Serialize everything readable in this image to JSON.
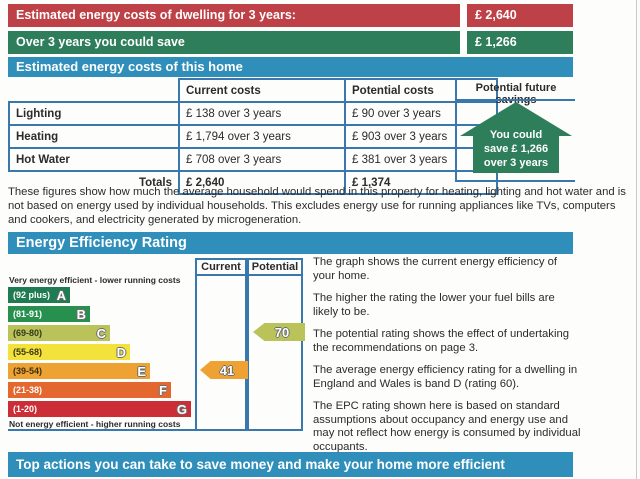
{
  "summary": {
    "cost_row": {
      "label": "Estimated energy costs of dwelling for 3 years:",
      "value": "£ 2,640"
    },
    "save_row": {
      "label": "Over 3 years you could save",
      "value": "£ 1,266"
    }
  },
  "costs": {
    "title": "Estimated energy costs of this home",
    "columns": [
      "Current costs",
      "Potential costs"
    ],
    "savings_header": "Potential future savings",
    "rows": [
      {
        "label": "Lighting",
        "current": "£ 138 over 3 years",
        "potential": "£ 90 over 3 years"
      },
      {
        "label": "Heating",
        "current": "£ 1,794 over 3 years",
        "potential": "£ 903 over 3 years"
      },
      {
        "label": "Hot Water",
        "current": "£ 708 over 3 years",
        "potential": "£ 381 over 3 years"
      }
    ],
    "totals": {
      "label": "Totals",
      "current": "£ 2,640",
      "potential": "£ 1,374"
    },
    "house": {
      "lines": [
        "You could",
        "save £ 1,266",
        "over 3 years"
      ],
      "color": "#2e7d5b"
    }
  },
  "disclaimer": "These figures show how much the average household would spend in this property for heating, lighting and hot water and is not based on energy used by individual households. This excludes energy use for running appliances like TVs, computers and cookers, and electricity generated by microgeneration.",
  "eer": {
    "title": "Energy Efficiency Rating",
    "top_caption": "Very energy efficient - lower running costs",
    "bottom_caption": "Not energy efficient - higher running costs",
    "col_current": "Current",
    "col_potential": "Potential",
    "chart_data": {
      "type": "epc-rating-bands",
      "bands": [
        {
          "letter": "A",
          "range": "(92 plus)",
          "min": 92,
          "max": 100,
          "color": "#1e7b52"
        },
        {
          "letter": "B",
          "range": "(81-91)",
          "min": 81,
          "max": 91,
          "color": "#28904f"
        },
        {
          "letter": "C",
          "range": "(69-80)",
          "min": 69,
          "max": 80,
          "color": "#b9c35a"
        },
        {
          "letter": "D",
          "range": "(55-68)",
          "min": 55,
          "max": 68,
          "color": "#f3e23c"
        },
        {
          "letter": "E",
          "range": "(39-54)",
          "min": 39,
          "max": 54,
          "color": "#eda233"
        },
        {
          "letter": "F",
          "range": "(21-38)",
          "min": 21,
          "max": 38,
          "color": "#e3672f"
        },
        {
          "letter": "G",
          "range": "(1-20)",
          "min": 1,
          "max": 20,
          "color": "#cc2e38"
        }
      ],
      "current": {
        "value": 41,
        "band": "E",
        "color": "#eda233"
      },
      "potential": {
        "value": 70,
        "band": "C",
        "color": "#b9c35a"
      }
    },
    "paragraphs": [
      "The graph shows the current energy efficiency of your home.",
      "The higher the rating the lower your fuel bills are likely to be.",
      "The potential rating shows the effect of undertaking the recommendations on page 3.",
      "The average energy efficiency rating for a dwelling in England and Wales is band D (rating 60).",
      "The EPC rating shown here is based on standard assumptions about occupancy and energy use and may not reflect how energy is consumed by individual occupants."
    ]
  },
  "actions": {
    "title": "Top actions you can take to save money and make your home more efficient"
  },
  "colors": {
    "banner_red": "#bd4146",
    "banner_green": "#2e7d5b",
    "banner_blue": "#2f8fba",
    "table_border": "#3a77ad",
    "house_green": "#2e7d5b"
  }
}
